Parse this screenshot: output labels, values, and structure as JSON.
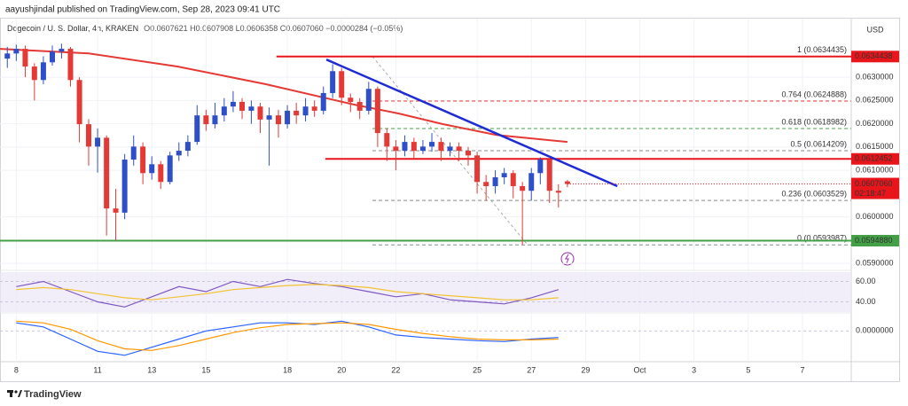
{
  "header": "aayushjindal published on TradingView.com, Sep 28, 2023 09:41 UTC",
  "footer": "TradingView",
  "chart_data": [
    {
      "type": "candlestick",
      "title": "Dogecoin / U. S. Dollar, 4h, KRAKEN",
      "info": "O0.0607621 H0.0607908 L0.0606358 C0.0607060 −0.0000284 (−0.05%)",
      "currency": "USD",
      "x": [
        7.67,
        8,
        8.33,
        8.67,
        9,
        9.33,
        9.67,
        10,
        10.33,
        10.67,
        11,
        11.33,
        11.67,
        12,
        12.33,
        12.67,
        13,
        13.33,
        13.67,
        14,
        14.33,
        14.67,
        15,
        15.33,
        15.67,
        16,
        16.33,
        16.67,
        17,
        17.33,
        17.67,
        18,
        18.33,
        18.67,
        19,
        19.33,
        19.67,
        20,
        20.33,
        20.67,
        21,
        21.33,
        21.67,
        22,
        22.33,
        22.67,
        23,
        23.33,
        23.67,
        24,
        24.33,
        24.67,
        25,
        25.33,
        25.67,
        26,
        26.33,
        26.67,
        27,
        27.33,
        27.67,
        28,
        28.33
      ],
      "open": [
        0.0634,
        0.06351,
        0.06361,
        0.06323,
        0.06294,
        0.06332,
        0.06355,
        0.06361,
        0.06294,
        0.06199,
        0.06151,
        0.0617,
        0.06018,
        0.06009,
        0.06123,
        0.06151,
        0.06094,
        0.06113,
        0.06075,
        0.06132,
        0.06142,
        0.06161,
        0.06218,
        0.06199,
        0.06218,
        0.06237,
        0.06247,
        0.06228,
        0.06237,
        0.06209,
        0.06218,
        0.06199,
        0.06228,
        0.06218,
        0.06237,
        0.06228,
        0.06266,
        0.06313,
        0.06256,
        0.06247,
        0.06228,
        0.06275,
        0.0618,
        0.06151,
        0.06142,
        0.06161,
        0.06142,
        0.06151,
        0.06161,
        0.06142,
        0.06151,
        0.06142,
        0.06132,
        0.06075,
        0.06066,
        0.06085,
        0.06094,
        0.06066,
        0.06056,
        0.06094,
        0.06123,
        0.06056,
        0.0607621
      ],
      "high": [
        0.06365,
        0.0637,
        0.06368,
        0.0633,
        0.06345,
        0.06368,
        0.06372,
        0.06365,
        0.063,
        0.0621,
        0.0619,
        0.06175,
        0.0606,
        0.06135,
        0.06175,
        0.0616,
        0.0613,
        0.0612,
        0.0614,
        0.0616,
        0.06175,
        0.0624,
        0.0623,
        0.06245,
        0.06255,
        0.0627,
        0.06255,
        0.0625,
        0.06245,
        0.06235,
        0.0623,
        0.0624,
        0.06245,
        0.06255,
        0.0625,
        0.0628,
        0.06328,
        0.0632,
        0.06265,
        0.06255,
        0.0629,
        0.0628,
        0.0619,
        0.06165,
        0.06175,
        0.0617,
        0.06165,
        0.0618,
        0.0617,
        0.0616,
        0.0616,
        0.0615,
        0.0614,
        0.0609,
        0.061,
        0.06105,
        0.061,
        0.06075,
        0.06105,
        0.06128,
        0.06125,
        0.0607,
        0.0607908
      ],
      "low": [
        0.0632,
        0.06335,
        0.063,
        0.0625,
        0.06285,
        0.06325,
        0.0634,
        0.0628,
        0.0616,
        0.0611,
        0.06095,
        0.0596,
        0.0595,
        0.05995,
        0.0611,
        0.0607,
        0.0608,
        0.0606,
        0.0607,
        0.0612,
        0.0613,
        0.06155,
        0.06185,
        0.0619,
        0.06205,
        0.06225,
        0.0621,
        0.062,
        0.0618,
        0.0611,
        0.0617,
        0.0619,
        0.062,
        0.06205,
        0.06215,
        0.0622,
        0.06255,
        0.0624,
        0.06225,
        0.0621,
        0.0622,
        0.0615,
        0.0612,
        0.061,
        0.0613,
        0.06125,
        0.06135,
        0.0614,
        0.0612,
        0.0613,
        0.0612,
        0.0611,
        0.0605,
        0.06035,
        0.0605,
        0.0607,
        0.0604,
        0.0594,
        0.06035,
        0.0607,
        0.0603,
        0.0602,
        0.0606358
      ],
      "close": [
        0.06351,
        0.06361,
        0.06323,
        0.06294,
        0.06332,
        0.06355,
        0.06361,
        0.06294,
        0.06199,
        0.06151,
        0.0617,
        0.06018,
        0.06009,
        0.06123,
        0.06151,
        0.06094,
        0.06113,
        0.06075,
        0.06132,
        0.06142,
        0.06161,
        0.06218,
        0.06199,
        0.06218,
        0.06237,
        0.06247,
        0.06228,
        0.06237,
        0.06209,
        0.06218,
        0.06199,
        0.06228,
        0.06218,
        0.06237,
        0.06228,
        0.06266,
        0.06313,
        0.06256,
        0.06247,
        0.06228,
        0.06275,
        0.0618,
        0.06151,
        0.06142,
        0.06161,
        0.06142,
        0.06151,
        0.06161,
        0.06142,
        0.06151,
        0.06142,
        0.06132,
        0.06075,
        0.06066,
        0.06085,
        0.06094,
        0.06066,
        0.06056,
        0.06094,
        0.06123,
        0.06056,
        0.06052,
        0.060706
      ],
      "up_color": "#2f4fc9",
      "down_color": "#e53935",
      "xlim": [
        7.4,
        38.8
      ],
      "xticks": [
        8,
        11,
        13,
        15,
        18,
        20,
        22,
        25,
        27,
        29,
        {
          "value": 31,
          "label": "Oct"
        },
        {
          "value": 33,
          "label": "3"
        },
        {
          "value": 35,
          "label": "5"
        },
        {
          "value": 37,
          "label": "7"
        }
      ],
      "ylim": [
        0.05885,
        0.06424
      ],
      "yticks": [
        {
          "value": 0.059,
          "label": "0.0590000"
        },
        {
          "value": 0.06,
          "label": "0.0600000"
        },
        {
          "value": 0.061,
          "label": "0.0610000"
        },
        {
          "value": 0.0615,
          "label": "0.0615000"
        },
        {
          "value": 0.062,
          "label": "0.0620000"
        },
        {
          "value": 0.0625,
          "label": "0.0625000"
        },
        {
          "value": 0.063,
          "label": "0.0630000"
        }
      ],
      "grid": true,
      "moving_average": {
        "color": "#e53935",
        "x": [
          7.4,
          10.67,
          13.94,
          17.21,
          20.48,
          22.12,
          23.75,
          25.71,
          28.33
        ],
        "values": [
          0.06361,
          0.06351,
          0.06323,
          0.06285,
          0.06241,
          0.06222,
          0.06199,
          0.06176,
          0.06161
        ]
      },
      "hlines": [
        {
          "value": 0.0634438,
          "label": "0.0634438",
          "color": "#e8151b",
          "x_start": 17.6
        },
        {
          "value": 0.0612452,
          "label": "0.0612452",
          "color": "#e8151b",
          "x_start": 19.4
        },
        {
          "value": 0.059488,
          "label": "0.0594880",
          "color": "#43a047",
          "x_start": 7.4
        }
      ],
      "trendline": {
        "color": "#1f2bd4",
        "x": [
          19.44,
          30.17
        ],
        "values": [
          0.06338,
          0.06066
        ]
      },
      "fib": {
        "x_start": 21.14,
        "levels": [
          {
            "label": "1 (0.0634435)",
            "value": 0.0634435,
            "color": "#888888"
          },
          {
            "label": "0.764 (0.0624888)",
            "value": 0.0624888,
            "color": "#e53935"
          },
          {
            "label": "0.618 (0.0618982)",
            "value": 0.0618982,
            "color": "#43a047"
          },
          {
            "label": "0.5 (0.0614209)",
            "value": 0.0614209,
            "color": "#888888"
          },
          {
            "label": "0.236 (0.0603529)",
            "value": 0.0603529,
            "color": "#888888"
          },
          {
            "label": "0 (0.0593987)",
            "value": 0.0593987,
            "color": "#888888"
          }
        ]
      },
      "fib_diagonal": {
        "x": [
          21.14,
          26.86
        ],
        "values": [
          0.0634435,
          0.0593987
        ]
      },
      "last_price": {
        "value": 0.060706,
        "label": "0.0607060",
        "countdown": "02:18:47",
        "color": "#e8151b"
      }
    },
    {
      "type": "line",
      "x": [
        8,
        9,
        10,
        11,
        12,
        13,
        14,
        15,
        16,
        17,
        18,
        19,
        20,
        21,
        22,
        23,
        24,
        25,
        26,
        27,
        28
      ],
      "series": [
        {
          "color": "#7e57c2",
          "values": [
            55,
            60,
            50,
            40,
            35,
            45,
            55,
            50,
            60,
            55,
            62,
            58,
            55,
            50,
            45,
            48,
            42,
            40,
            38,
            44,
            52
          ]
        },
        {
          "color": "#f2c230",
          "values": [
            52,
            54,
            52,
            48,
            44,
            42,
            45,
            48,
            52,
            54,
            56,
            57,
            56,
            54,
            50,
            48,
            46,
            44,
            42,
            42,
            44
          ]
        }
      ],
      "band_color": "#ede7f6",
      "ylim": [
        30,
        70
      ],
      "yticks": [
        {
          "value": 40,
          "label": "40.00"
        },
        {
          "value": 60,
          "label": "60.00"
        }
      ]
    },
    {
      "type": "line",
      "x": [
        8,
        9,
        10,
        11,
        12,
        13,
        14,
        15,
        16,
        17,
        18,
        19,
        20,
        21,
        22,
        23,
        24,
        25,
        26,
        27,
        28
      ],
      "series": [
        {
          "color": "#2962ff",
          "values": [
            0.0001,
            5e-05,
            -0.0001,
            -0.00025,
            -0.0003,
            -0.0002,
            -0.0001,
            0,
            5e-05,
            0.0001,
            0.0001,
            8e-05,
            0.00012,
            5e-05,
            -5e-05,
            -8e-05,
            -0.0001,
            -0.00012,
            -0.00013,
            -0.0001,
            -8e-05
          ]
        },
        {
          "color": "#ff9800",
          "values": [
            0.00012,
            0.0001,
            2e-05,
            -0.00012,
            -0.00022,
            -0.00024,
            -0.00018,
            -0.0001,
            -2e-05,
            4e-05,
            8e-05,
            9e-05,
            0.0001,
            8e-05,
            2e-05,
            -3e-05,
            -7e-05,
            -0.0001,
            -0.00011,
            -0.00011,
            -0.0001
          ]
        }
      ],
      "ylim": [
        -0.0004,
        0.0002
      ],
      "yticks": [
        {
          "value": 0,
          "label": "0.0000000"
        }
      ]
    }
  ]
}
